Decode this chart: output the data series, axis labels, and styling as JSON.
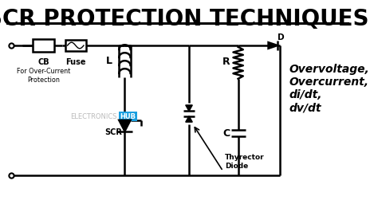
{
  "title": "SCR PROTECTION TECHNIQUES",
  "title_fontsize": 20,
  "title_color": "#000000",
  "background_color": "#ffffff",
  "line_color": "#000000",
  "line_width": 1.8,
  "labels": {
    "CB": "CB",
    "Fuse": "Fuse",
    "for_protection": "For Over-Current\nProtection",
    "L": "L",
    "SCR": "SCR",
    "R": "R",
    "C": "C",
    "D": "D",
    "thyrector": "Thyrector\nDiode",
    "overvoltage": "Overvoltage,\nOvercurrent,\ndi/dt,\ndv/dt"
  },
  "figsize": [
    4.74,
    2.66
  ],
  "dpi": 100,
  "xlim": [
    0,
    10
  ],
  "ylim": [
    0,
    7
  ],
  "top_y": 5.5,
  "bot_y": 1.2,
  "n1x": 3.3,
  "n2x": 5.0,
  "n3x": 6.3,
  "n4x": 7.4
}
